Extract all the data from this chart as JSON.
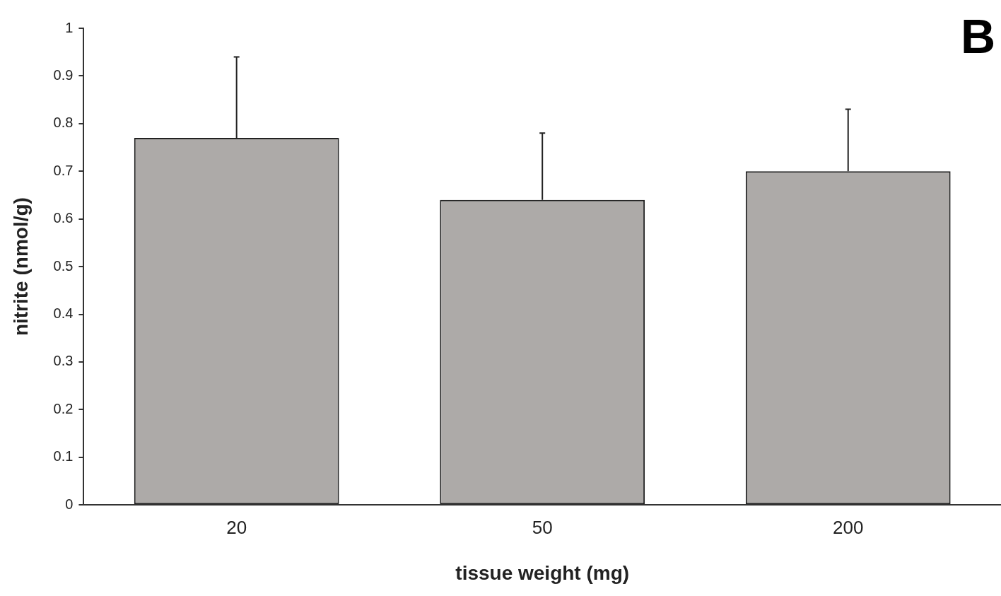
{
  "chart_data": {
    "type": "bar",
    "xlabel": "tissue weight (mg)",
    "ylabel": "nitrite (nmol/g)",
    "categories": [
      "20",
      "50",
      "200"
    ],
    "values": [
      0.77,
      0.64,
      0.7
    ],
    "errors": [
      [
        0.77,
        0.94
      ],
      [
        0.64,
        0.78
      ],
      [
        0.7,
        0.83
      ]
    ],
    "color": "#adaaa8",
    "ylim": [
      0,
      1
    ],
    "yticks": [
      0,
      0.1,
      0.2,
      0.3,
      0.4,
      0.5,
      0.6,
      0.7,
      0.8,
      0.9,
      1
    ],
    "grid": false,
    "legend": false,
    "annotations": [
      "B"
    ]
  }
}
